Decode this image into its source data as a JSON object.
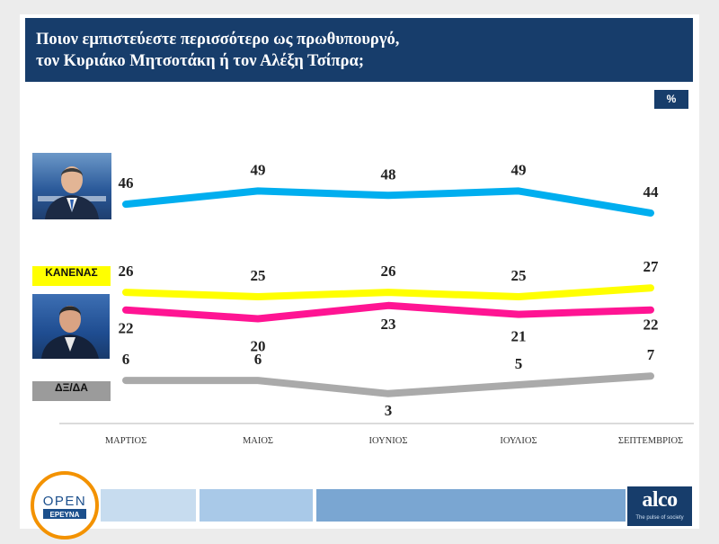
{
  "title": {
    "line1": "Ποιον εμπιστεύεστε περισσότερο ως πρωθυπουργό,",
    "line2": "τον Κυριάκο Μητσοτάκη ή τον Αλέξη Τσίπρα;"
  },
  "unit": "%",
  "chart_data": {
    "type": "line",
    "categories": [
      "ΜΑΡΤΙΟΣ",
      "ΜΑΙΟΣ",
      "ΙΟΥΝΙΟΣ",
      "ΙΟΥΛΙΟΣ",
      "ΣΕΠΤΕΜΒΡΙΟΣ"
    ],
    "series": [
      {
        "name": "",
        "color": "#00aeef",
        "values": [
          46,
          49,
          48,
          49,
          44
        ],
        "labels": "above"
      },
      {
        "name": "ΚΑΝΕΝΑΣ",
        "color": "#ffff00",
        "values": [
          26,
          25,
          26,
          25,
          27
        ],
        "labels": "above"
      },
      {
        "name": "",
        "color": "#ff1493",
        "values": [
          22,
          20,
          23,
          21,
          22
        ],
        "labels": "below"
      },
      {
        "name": "ΔΞ/ΔΑ",
        "color": "#aaaaaa",
        "values": [
          6,
          6,
          3,
          5,
          7
        ],
        "labels": "mixed"
      }
    ],
    "legend": "left",
    "grid": false
  },
  "footer": {
    "open_logo_top": "OPEN",
    "open_logo_bottom": "ΕΡΕΥΝΑ",
    "brand": "alco",
    "tagline": "The pulse of society"
  },
  "colors": {
    "header": "#173d6b",
    "accent_orange": "#f39200"
  }
}
